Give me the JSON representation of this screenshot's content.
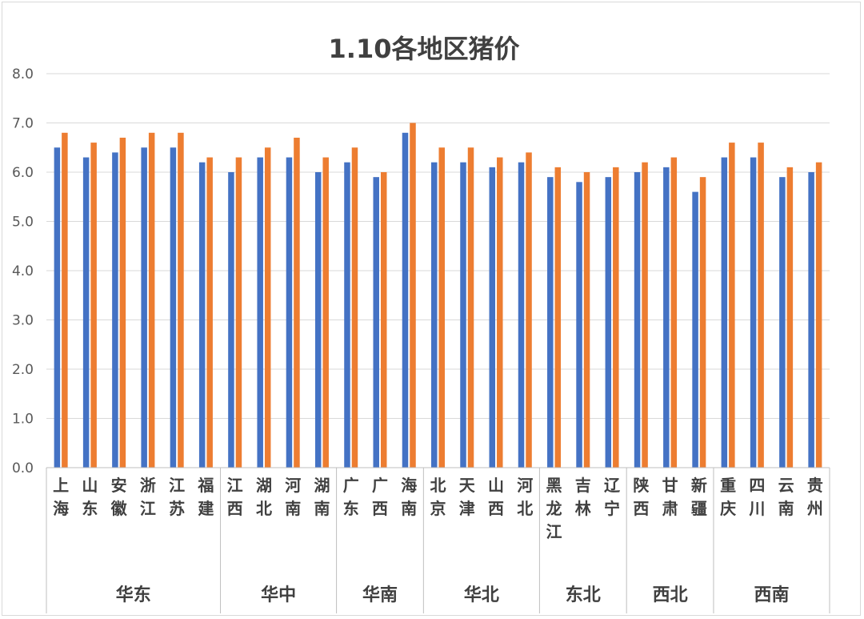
{
  "chart_data": {
    "type": "bar",
    "title": "1.10各地区猪价",
    "ylim": [
      0,
      8
    ],
    "yticks": [
      "0.0",
      "1.0",
      "2.0",
      "3.0",
      "4.0",
      "5.0",
      "6.0",
      "7.0",
      "8.0"
    ],
    "grid": true,
    "legend": "none",
    "categories": [
      "上海",
      "山东",
      "安徽",
      "浙江",
      "江苏",
      "福建",
      "江西",
      "湖北",
      "河南",
      "湖南",
      "广东",
      "广西",
      "海南",
      "北京",
      "天津",
      "山西",
      "河北",
      "黑龙江",
      "吉林",
      "辽宁",
      "陕西",
      "甘肃",
      "新疆",
      "重庆",
      "四川",
      "云南",
      "贵州"
    ],
    "groups": [
      {
        "label": "华东",
        "count": 6
      },
      {
        "label": "华中",
        "count": 4
      },
      {
        "label": "华南",
        "count": 3
      },
      {
        "label": "华北",
        "count": 4
      },
      {
        "label": "东北",
        "count": 3
      },
      {
        "label": "西北",
        "count": 3
      },
      {
        "label": "西南",
        "count": 4
      }
    ],
    "series": [
      {
        "color": "#4472C4",
        "values": [
          6.5,
          6.3,
          6.4,
          6.5,
          6.5,
          6.2,
          6.0,
          6.3,
          6.3,
          6.0,
          6.2,
          5.9,
          6.8,
          6.2,
          6.2,
          6.1,
          6.2,
          5.9,
          5.8,
          5.9,
          6.0,
          6.1,
          5.6,
          6.3,
          6.3,
          5.9,
          6.0
        ]
      },
      {
        "color": "#ED7D31",
        "values": [
          6.8,
          6.6,
          6.7,
          6.8,
          6.8,
          6.3,
          6.3,
          6.5,
          6.7,
          6.3,
          6.5,
          6.0,
          7.0,
          6.5,
          6.5,
          6.3,
          6.4,
          6.1,
          6.0,
          6.1,
          6.2,
          6.3,
          5.9,
          6.6,
          6.6,
          6.1,
          6.2
        ]
      }
    ]
  }
}
